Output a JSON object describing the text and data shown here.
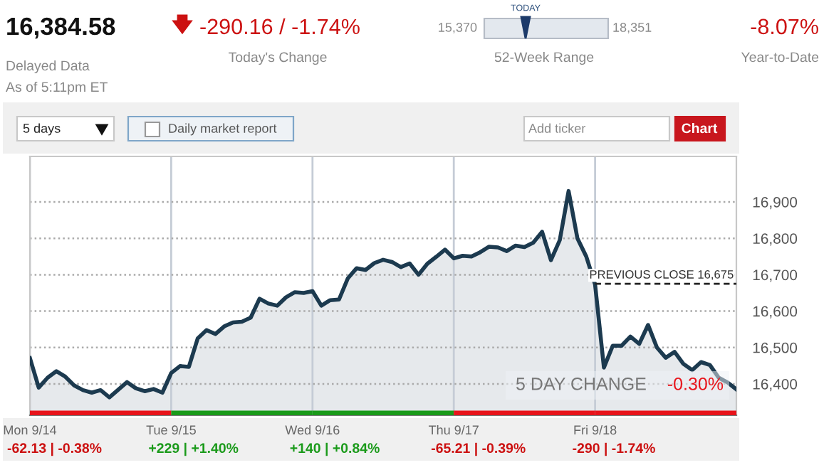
{
  "chart_data": {
    "type": "area",
    "categories": [
      "Mon 9/14",
      null,
      null,
      null,
      null,
      null,
      null,
      null,
      null,
      null,
      null,
      null,
      null,
      null,
      null,
      null,
      "Tue 9/15",
      null,
      null,
      null,
      null,
      null,
      null,
      null,
      null,
      null,
      null,
      null,
      null,
      null,
      null,
      null,
      "Wed 9/16",
      null,
      null,
      null,
      null,
      null,
      null,
      null,
      null,
      null,
      null,
      null,
      null,
      null,
      null,
      null,
      "Thu 9/17",
      null,
      null,
      null,
      null,
      null,
      null,
      null,
      null,
      null,
      null,
      null,
      null,
      null,
      null,
      null,
      "Fri 9/18",
      null,
      null,
      null,
      null,
      null,
      null,
      null,
      null,
      null,
      null,
      null,
      null,
      null,
      null,
      null,
      null
    ],
    "series": [
      {
        "color": "#1c3a4f",
        "values": [
          16471,
          16390,
          16417,
          16435,
          16420,
          16396,
          16383,
          16376,
          16383,
          16363,
          16384,
          16405,
          16388,
          16380,
          16386,
          16376,
          16430,
          16449,
          16447,
          16525,
          16548,
          16537,
          16558,
          16569,
          16571,
          16582,
          16634,
          16621,
          16615,
          16638,
          16652,
          16650,
          16655,
          16615,
          16630,
          16632,
          16690,
          16718,
          16713,
          16732,
          16741,
          16735,
          16721,
          16731,
          16700,
          16730,
          16749,
          16769,
          16745,
          16752,
          16750,
          16762,
          16777,
          16775,
          16765,
          16780,
          16776,
          16788,
          16818,
          16740,
          16795,
          16930,
          16800,
          16750,
          16673,
          16445,
          16505,
          16505,
          16530,
          16510,
          16562,
          16500,
          16472,
          16488,
          16455,
          16438,
          16460,
          16452,
          16417,
          16404,
          16385
        ]
      }
    ],
    "ylim": [
      16314,
      17025
    ],
    "yticks": [
      {
        "value": 16400,
        "label": "16,400"
      },
      {
        "value": 16500,
        "label": "16,500"
      },
      {
        "value": 16600,
        "label": "16,600"
      },
      {
        "value": 16700,
        "label": "16,700"
      },
      {
        "value": 16800,
        "label": "16,800"
      },
      {
        "value": 16900,
        "label": "16,900"
      }
    ],
    "grid": true,
    "ref_lines": [
      {
        "axis": "y",
        "value": 16675,
        "label": "PREVIOUS CLOSE 16,675",
        "line_style": "dashed",
        "color": "#222222"
      }
    ],
    "annotations": [
      "16,384.58",
      "Delayed Data",
      "As of 5:11pm ET",
      "-290.16 / -1.74%",
      "Today's Change",
      "TODAY",
      "15,370",
      "18,351",
      "52-Week Range",
      "-8.07%",
      "Year-to-Date",
      "5 days",
      "Daily market report",
      "Add ticker",
      "Chart",
      "5 DAY CHANGE",
      "-0.30%",
      "-62.13 | -0.38%",
      "+229 | +1.40%",
      "+140 | +0.84%",
      "-65.21 | -0.39%",
      "-290 | -1.74%"
    ]
  }
}
